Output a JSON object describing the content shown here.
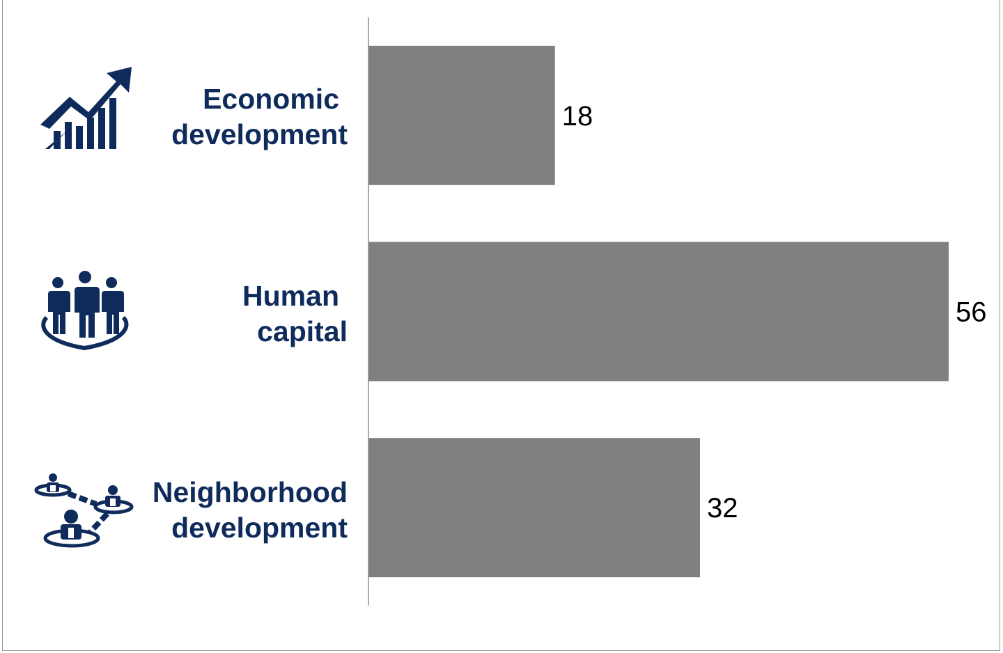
{
  "chart_data": {
    "type": "bar",
    "orientation": "horizontal",
    "categories": [
      {
        "lines": [
          "Economic",
          "development"
        ],
        "icon": "chart-growth-icon"
      },
      {
        "lines": [
          "Human",
          "capital"
        ],
        "icon": "people-group-icon"
      },
      {
        "lines": [
          "Neighborhood",
          "development"
        ],
        "icon": "network-people-icon"
      }
    ],
    "values": [
      18,
      56,
      32
    ],
    "data_labels": [
      "18",
      "56",
      "32"
    ],
    "xlim": [
      0,
      60
    ],
    "grid": false,
    "legend": "none",
    "bar_color": "#808080",
    "label_color": "#0f2b5b",
    "icon_color": "#0f2b5b"
  }
}
